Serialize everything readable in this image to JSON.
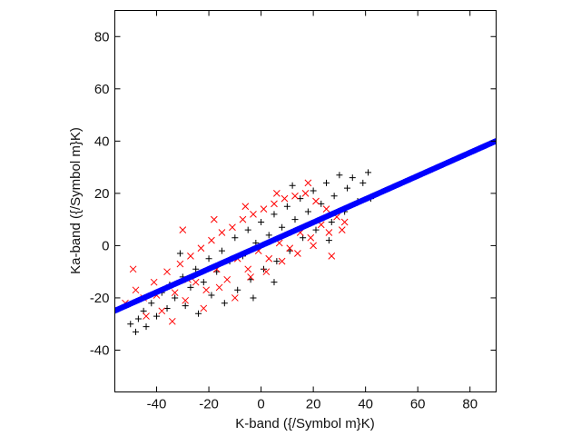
{
  "chart_data": {
    "type": "scatter",
    "xlabel": "K-band ({/Symbol m}K)",
    "ylabel": "Ka-band ({/Symbol m}K)",
    "xlim": [
      -56,
      90
    ],
    "ylim": [
      -56,
      90
    ],
    "xticks": [
      "-40",
      "-20",
      "0",
      "20",
      "40",
      "60",
      "80"
    ],
    "yticks": [
      "-40",
      "-20",
      "0",
      "20",
      "40",
      "60",
      "80"
    ],
    "grid": false,
    "legend": "none",
    "series": [
      {
        "marker": "plus",
        "color": "#000000",
        "points": [
          [
            -50,
            -30
          ],
          [
            -47,
            -28
          ],
          [
            -45,
            -25
          ],
          [
            -44,
            -31
          ],
          [
            -42,
            -22
          ],
          [
            -40,
            -27
          ],
          [
            -38,
            -18
          ],
          [
            -36,
            -24
          ],
          [
            -35,
            -15
          ],
          [
            -33,
            -20
          ],
          [
            -30,
            -12
          ],
          [
            -29,
            -23
          ],
          [
            -27,
            -16
          ],
          [
            -25,
            -9
          ],
          [
            -24,
            -26
          ],
          [
            -22,
            -14
          ],
          [
            -20,
            -5
          ],
          [
            -19,
            -19
          ],
          [
            -17,
            -10
          ],
          [
            -15,
            -2
          ],
          [
            -14,
            -22
          ],
          [
            -12,
            -6
          ],
          [
            -10,
            3
          ],
          [
            -9,
            -17
          ],
          [
            -7,
            -4
          ],
          [
            -5,
            6
          ],
          [
            -4,
            -13
          ],
          [
            -2,
            1
          ],
          [
            0,
            9
          ],
          [
            1,
            -9
          ],
          [
            3,
            4
          ],
          [
            5,
            12
          ],
          [
            6,
            -6
          ],
          [
            8,
            7
          ],
          [
            10,
            15
          ],
          [
            11,
            -2
          ],
          [
            13,
            10
          ],
          [
            15,
            18
          ],
          [
            16,
            3
          ],
          [
            18,
            13
          ],
          [
            20,
            21
          ],
          [
            21,
            6
          ],
          [
            23,
            16
          ],
          [
            25,
            24
          ],
          [
            27,
            9
          ],
          [
            28,
            19
          ],
          [
            30,
            27
          ],
          [
            32,
            13
          ],
          [
            33,
            22
          ],
          [
            35,
            26
          ],
          [
            37,
            17
          ],
          [
            39,
            24
          ],
          [
            41,
            28
          ],
          [
            42,
            18
          ],
          [
            -48,
            -33
          ],
          [
            -3,
            -20
          ],
          [
            12,
            23
          ],
          [
            26,
            2
          ],
          [
            -31,
            -3
          ],
          [
            5,
            -14
          ]
        ]
      },
      {
        "marker": "cross",
        "color": "#ff0000",
        "points": [
          [
            -52,
            -22
          ],
          [
            -48,
            -17
          ],
          [
            -45,
            -20
          ],
          [
            -41,
            -14
          ],
          [
            -38,
            -25
          ],
          [
            -36,
            -10
          ],
          [
            -33,
            -18
          ],
          [
            -31,
            -7
          ],
          [
            -29,
            -21
          ],
          [
            -27,
            -4
          ],
          [
            -25,
            -14
          ],
          [
            -23,
            -1
          ],
          [
            -21,
            -17
          ],
          [
            -19,
            2
          ],
          [
            -17,
            -9
          ],
          [
            -15,
            5
          ],
          [
            -13,
            -13
          ],
          [
            -11,
            7
          ],
          [
            -9,
            -5
          ],
          [
            -7,
            10
          ],
          [
            -5,
            -9
          ],
          [
            -3,
            12
          ],
          [
            -1,
            -2
          ],
          [
            1,
            14
          ],
          [
            3,
            -5
          ],
          [
            5,
            16
          ],
          [
            7,
            1
          ],
          [
            9,
            18
          ],
          [
            11,
            -1
          ],
          [
            13,
            19
          ],
          [
            15,
            5
          ],
          [
            17,
            20
          ],
          [
            19,
            3
          ],
          [
            21,
            17
          ],
          [
            23,
            8
          ],
          [
            25,
            14
          ],
          [
            27,
            -4
          ],
          [
            29,
            11
          ],
          [
            31,
            6
          ],
          [
            -44,
            -27
          ],
          [
            -40,
            -19
          ],
          [
            -34,
            -29
          ],
          [
            -28,
            -13
          ],
          [
            -22,
            -24
          ],
          [
            -16,
            -16
          ],
          [
            -10,
            -20
          ],
          [
            -4,
            -12
          ],
          [
            2,
            -10
          ],
          [
            8,
            -6
          ],
          [
            14,
            -3
          ],
          [
            20,
            0
          ],
          [
            26,
            5
          ],
          [
            32,
            9
          ],
          [
            -30,
            6
          ],
          [
            -18,
            10
          ],
          [
            -6,
            15
          ],
          [
            6,
            20
          ],
          [
            18,
            24
          ],
          [
            -49,
            -9
          ]
        ]
      },
      {
        "marker": "dot",
        "color": "#0000ff",
        "fit_line": {
          "slope": 0.445,
          "intercept": 0.0
        },
        "x_range": [
          -56,
          90
        ]
      }
    ]
  }
}
